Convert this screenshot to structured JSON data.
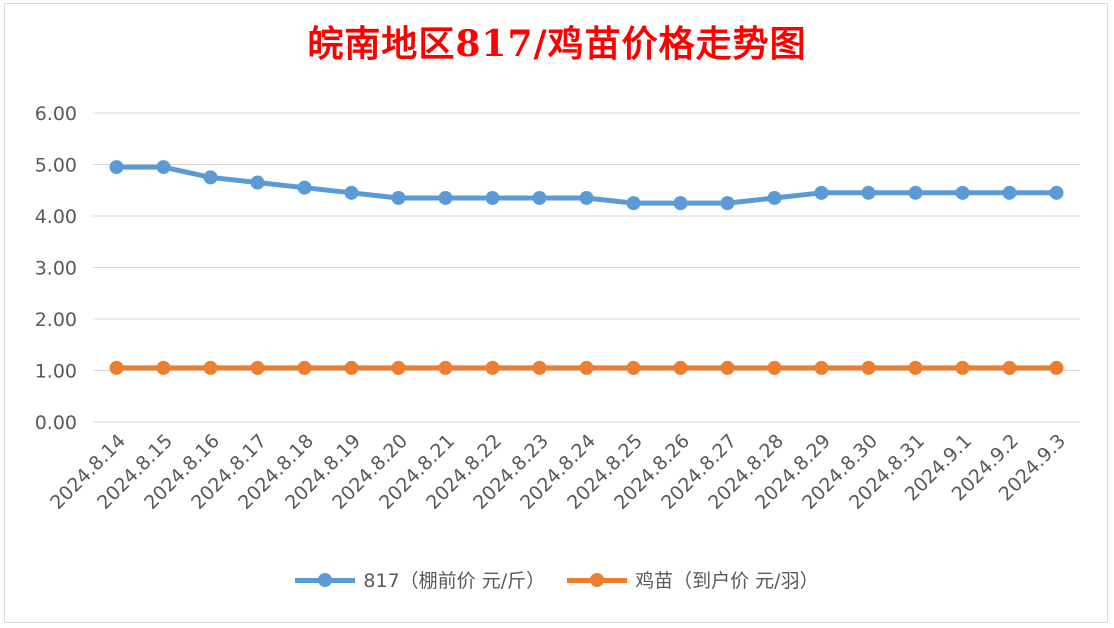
{
  "colors": {
    "series1": "#5b9bd5",
    "series2": "#ed7d31",
    "title": "#ff0000",
    "grid": "#d9d9d9",
    "text": "#595959"
  },
  "chart_data": {
    "type": "line",
    "title": "皖南地区817/鸡苗价格走势图",
    "xlabel": "",
    "ylabel": "",
    "ylim": [
      0,
      6
    ],
    "ytick_step": 1,
    "ytick_labels": [
      "0.00",
      "1.00",
      "2.00",
      "3.00",
      "4.00",
      "5.00",
      "6.00"
    ],
    "grid": true,
    "legend_position": "bottom",
    "categories": [
      "2024.8.14",
      "2024.8.15",
      "2024.8.16",
      "2024.8.17",
      "2024.8.18",
      "2024.8.19",
      "2024.8.20",
      "2024.8.21",
      "2024.8.22",
      "2024.8.23",
      "2024.8.24",
      "2024.8.25",
      "2024.8.26",
      "2024.8.27",
      "2024.8.28",
      "2024.8.29",
      "2024.8.30",
      "2024.8.31",
      "2024.9.1",
      "2024.9.2",
      "2024.9.3"
    ],
    "series": [
      {
        "name": "817（棚前价 元/斤）",
        "color": "#5b9bd5",
        "values": [
          4.95,
          4.95,
          4.75,
          4.65,
          4.55,
          4.45,
          4.35,
          4.35,
          4.35,
          4.35,
          4.35,
          4.25,
          4.25,
          4.25,
          4.35,
          4.45,
          4.45,
          4.45,
          4.45,
          4.45,
          4.45
        ]
      },
      {
        "name": "鸡苗（到户价 元/羽）",
        "color": "#ed7d31",
        "values": [
          1.05,
          1.05,
          1.05,
          1.05,
          1.05,
          1.05,
          1.05,
          1.05,
          1.05,
          1.05,
          1.05,
          1.05,
          1.05,
          1.05,
          1.05,
          1.05,
          1.05,
          1.05,
          1.05,
          1.05,
          1.05
        ]
      }
    ]
  }
}
